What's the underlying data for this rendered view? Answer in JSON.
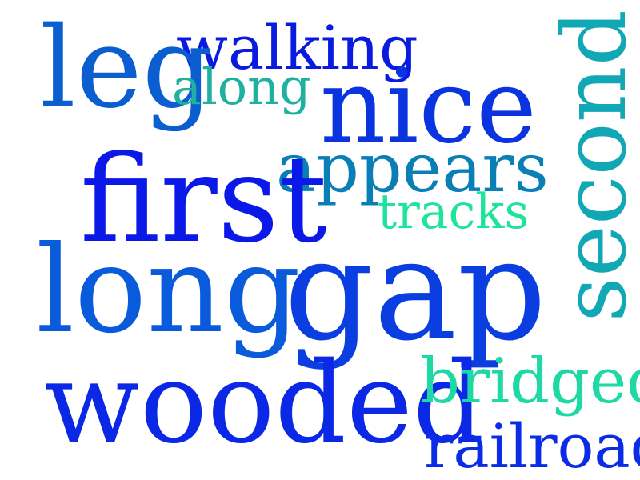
{
  "words": [
    {
      "key": "walking",
      "text": "walking",
      "color": "#0a1be0"
    },
    {
      "key": "leg",
      "text": "leg",
      "color": "#0a5ed0"
    },
    {
      "key": "along",
      "text": "along",
      "color": "#1fb0a0"
    },
    {
      "key": "nice",
      "text": "nice",
      "color": "#0a34e0"
    },
    {
      "key": "appears",
      "text": "appears",
      "color": "#0a7fb5"
    },
    {
      "key": "tracks",
      "text": "tracks",
      "color": "#1ee39a"
    },
    {
      "key": "first",
      "text": "first",
      "color": "#0a18e8"
    },
    {
      "key": "long",
      "text": "long",
      "color": "#0a5bdb"
    },
    {
      "key": "gap",
      "text": "gap",
      "color": "#0a3ee0"
    },
    {
      "key": "second",
      "text": "second",
      "color": "#12a7b5"
    },
    {
      "key": "wooded",
      "text": "wooded",
      "color": "#0a28e6"
    },
    {
      "key": "bridged",
      "text": "bridged",
      "color": "#1ed8a5"
    },
    {
      "key": "railroad",
      "text": "railroad",
      "color": "#0a2ce6"
    }
  ]
}
